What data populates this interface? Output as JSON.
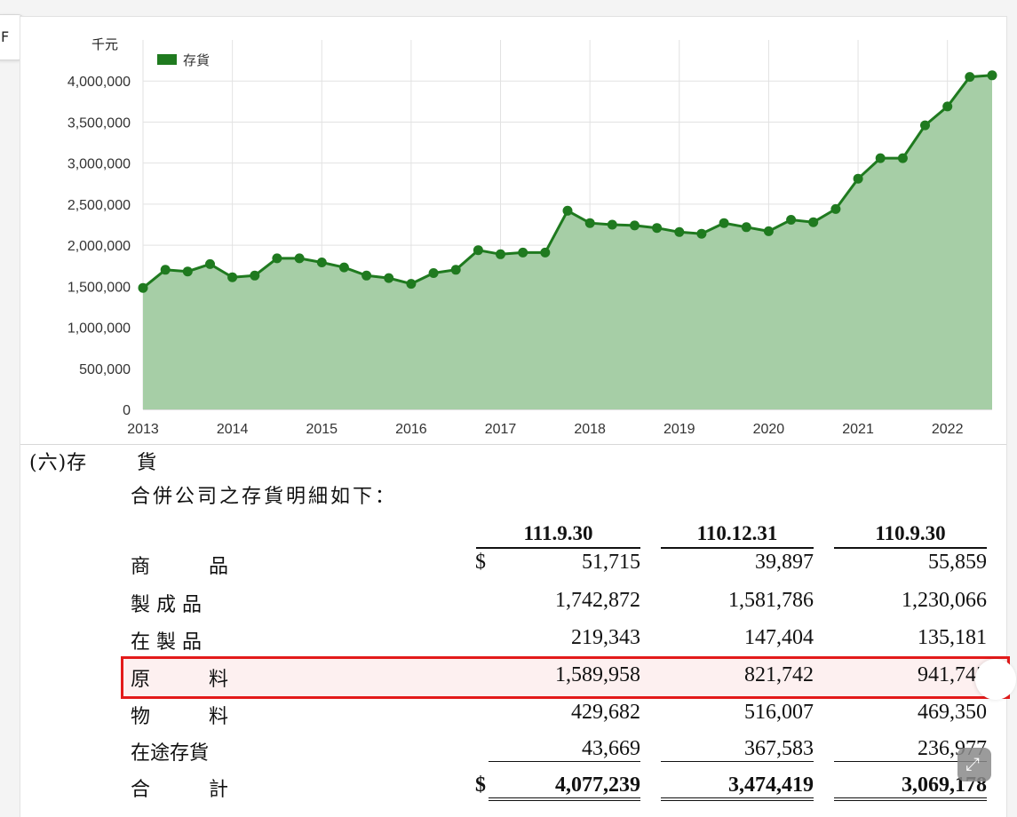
{
  "chart_data": {
    "type": "area",
    "unit_label": "千元",
    "legend": [
      "存貨"
    ],
    "legend_position": "top-left",
    "grid": true,
    "ylim": [
      0,
      4500000
    ],
    "yticks": [
      "0",
      "500,000",
      "1,000,000",
      "1,500,000",
      "2,000,000",
      "2,500,000",
      "3,000,000",
      "3,500,000",
      "4,000,000"
    ],
    "xticks": [
      "2013",
      "2014",
      "2015",
      "2016",
      "2017",
      "2018",
      "2019",
      "2020",
      "2021",
      "2022"
    ],
    "x_start": 2013,
    "x_step_quarters": 0.25,
    "series": [
      {
        "name": "存貨",
        "color": "#1f7a1f",
        "fill": "#a6cea6",
        "values": [
          1480000,
          1700000,
          1680000,
          1770000,
          1610000,
          1630000,
          1840000,
          1840000,
          1790000,
          1730000,
          1630000,
          1600000,
          1530000,
          1660000,
          1700000,
          1940000,
          1890000,
          1910000,
          1910000,
          2420000,
          2270000,
          2250000,
          2240000,
          2210000,
          2160000,
          2140000,
          2270000,
          2220000,
          2170000,
          2310000,
          2280000,
          2440000,
          2810000,
          3060000,
          3060000,
          3460000,
          3690000,
          4050000,
          4070000
        ]
      }
    ]
  },
  "section": {
    "title_a": "(六)存",
    "title_b": "貨",
    "intro": "合併公司之存貨明細如下："
  },
  "table": {
    "columns": [
      "111.9.30",
      "110.12.31",
      "110.9.30"
    ],
    "currency": "$",
    "rows": [
      {
        "label": "商　　　品",
        "values": [
          "51,715",
          "39,897",
          "55,859"
        ]
      },
      {
        "label": "製 成 品",
        "values": [
          "1,742,872",
          "1,581,786",
          "1,230,066"
        ]
      },
      {
        "label": "在 製 品",
        "values": [
          "219,343",
          "147,404",
          "135,181"
        ]
      },
      {
        "label": "原　　　料",
        "values": [
          "1,589,958",
          "821,742",
          "941,745"
        ]
      },
      {
        "label": "物　　　料",
        "values": [
          "429,682",
          "516,007",
          "469,350"
        ]
      },
      {
        "label": "在途存貨",
        "values": [
          "43,669",
          "367,583",
          "236,977"
        ]
      },
      {
        "label": "合　　　計",
        "values": [
          "4,077,239",
          "3,474,419",
          "3,069,178"
        ]
      }
    ]
  },
  "colors": {
    "highlight": "#e31a1a",
    "line": "#1f7a1f",
    "area": "#a6cea6"
  }
}
